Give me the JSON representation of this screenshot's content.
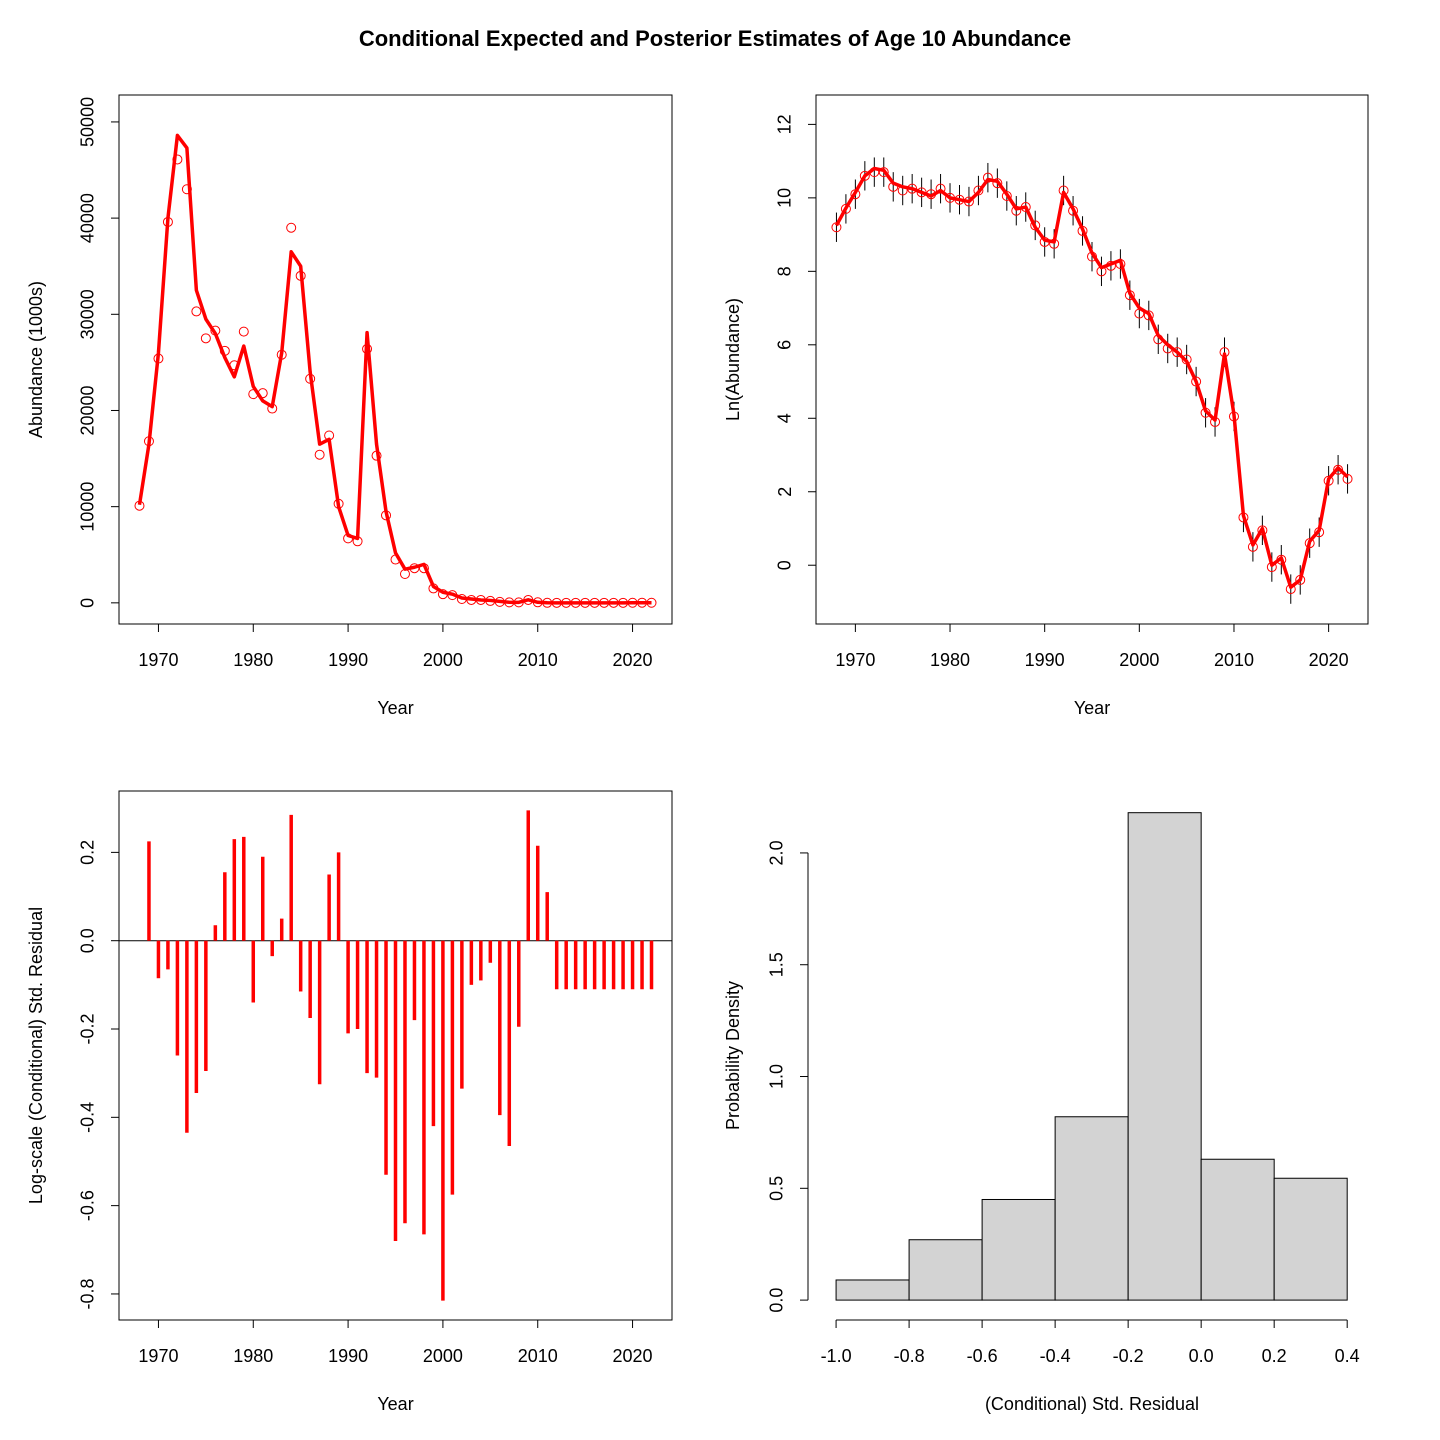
{
  "title": "Conditional Expected and Posterior Estimates of Age 10 Abundance",
  "chart_data": [
    {
      "type": "line",
      "x_label": "Year",
      "y_label": "Abundance (1000s)",
      "x": [
        1968,
        1969,
        1970,
        1971,
        1972,
        1973,
        1974,
        1975,
        1976,
        1977,
        1978,
        1979,
        1980,
        1981,
        1982,
        1983,
        1984,
        1985,
        1986,
        1987,
        1988,
        1989,
        1990,
        1991,
        1992,
        1993,
        1994,
        1995,
        1996,
        1997,
        1998,
        1999,
        2000,
        2001,
        2002,
        2003,
        2004,
        2005,
        2006,
        2007,
        2008,
        2009,
        2010,
        2011,
        2012,
        2013,
        2014,
        2015,
        2016,
        2017,
        2018,
        2019,
        2020,
        2021,
        2022
      ],
      "xlim": [
        1965.84,
        2024.16
      ],
      "xticks": [
        1970,
        1980,
        1990,
        2000,
        2010,
        2020
      ],
      "ylim": [
        -2200,
        52800
      ],
      "yticks": [
        0,
        10000,
        20000,
        30000,
        40000,
        50000
      ],
      "series": [
        {
          "style": "points",
          "color": "#ff0000",
          "values": [
            10100,
            16800,
            25400,
            39600,
            46100,
            43000,
            30300,
            27500,
            28300,
            26200,
            24700,
            28200,
            21700,
            21800,
            20200,
            25800,
            39000,
            34000,
            23300,
            15400,
            17400,
            10300,
            6700,
            6400,
            26400,
            15300,
            9100,
            4500,
            3000,
            3600,
            3600,
            1500,
            900,
            800,
            400,
            300,
            300,
            200,
            100,
            50,
            50,
            300,
            57,
            3.7,
            1.6,
            2.6,
            1.0,
            1.2,
            0.5,
            0.7,
            1.8,
            2.5,
            10,
            13.5,
            10.5
          ]
        },
        {
          "style": "line",
          "color": "#ff0000",
          "values": [
            10200,
            16500,
            26000,
            40000,
            48600,
            47300,
            32500,
            29500,
            28000,
            25500,
            23500,
            26700,
            22500,
            21000,
            20400,
            26000,
            36500,
            35000,
            24000,
            16500,
            17000,
            10000,
            7000,
            6700,
            28100,
            16500,
            9500,
            5200,
            3500,
            3700,
            4000,
            1700,
            1100,
            900,
            500,
            400,
            300,
            250,
            150,
            60,
            50,
            320,
            60,
            4,
            1.8,
            2.8,
            1.1,
            1.3,
            0.6,
            0.7,
            1.9,
            2.7,
            10.5,
            14,
            11
          ]
        }
      ]
    },
    {
      "type": "line",
      "x_label": "Year",
      "y_label": "Ln(Abundance)",
      "x": [
        1968,
        1969,
        1970,
        1971,
        1972,
        1973,
        1974,
        1975,
        1976,
        1977,
        1978,
        1979,
        1980,
        1981,
        1982,
        1983,
        1984,
        1985,
        1986,
        1987,
        1988,
        1989,
        1990,
        1991,
        1992,
        1993,
        1994,
        1995,
        1996,
        1997,
        1998,
        1999,
        2000,
        2001,
        2002,
        2003,
        2004,
        2005,
        2006,
        2007,
        2008,
        2009,
        2010,
        2011,
        2012,
        2013,
        2014,
        2015,
        2016,
        2017,
        2018,
        2019,
        2020,
        2021,
        2022
      ],
      "xlim": [
        1965.84,
        2024.16
      ],
      "xticks": [
        1970,
        1980,
        1990,
        2000,
        2010,
        2020
      ],
      "ylim": [
        -1.6,
        12.8
      ],
      "yticks": [
        0,
        2,
        4,
        6,
        8,
        10,
        12
      ],
      "series": [
        {
          "style": "points",
          "color": "#ff0000",
          "error": 0.4,
          "values": [
            9.2,
            9.7,
            10.1,
            10.6,
            10.7,
            10.7,
            10.3,
            10.2,
            10.25,
            10.15,
            10.1,
            10.25,
            10.0,
            9.95,
            9.9,
            10.2,
            10.55,
            10.4,
            10.05,
            9.65,
            9.75,
            9.25,
            8.8,
            8.75,
            10.2,
            9.65,
            9.1,
            8.4,
            8.0,
            8.15,
            8.2,
            7.35,
            6.85,
            6.8,
            6.15,
            5.9,
            5.8,
            5.6,
            5.0,
            4.15,
            3.9,
            5.8,
            4.05,
            1.3,
            0.5,
            0.95,
            -0.05,
            0.15,
            -0.65,
            -0.4,
            0.6,
            0.9,
            2.3,
            2.6,
            2.35
          ]
        },
        {
          "style": "line",
          "color": "#ff0000",
          "values": [
            9.25,
            9.72,
            10.15,
            10.6,
            10.8,
            10.75,
            10.4,
            10.3,
            10.25,
            10.15,
            10.05,
            10.2,
            10.0,
            9.95,
            9.9,
            10.15,
            10.5,
            10.45,
            10.1,
            9.7,
            9.75,
            9.2,
            8.85,
            8.8,
            10.15,
            9.7,
            9.15,
            8.5,
            8.1,
            8.2,
            8.3,
            7.4,
            7.0,
            6.85,
            6.25,
            6.0,
            5.8,
            5.55,
            5.0,
            4.2,
            3.95,
            5.75,
            4.1,
            1.35,
            0.55,
            1.0,
            0.0,
            0.2,
            -0.6,
            -0.4,
            0.65,
            0.95,
            2.35,
            2.65,
            2.4
          ]
        }
      ]
    },
    {
      "type": "bar",
      "x_label": "Year",
      "y_label": "Log-scale (Conditional) Std. Residual",
      "x": [
        1968,
        1969,
        1970,
        1971,
        1972,
        1973,
        1974,
        1975,
        1976,
        1977,
        1978,
        1979,
        1980,
        1981,
        1982,
        1983,
        1984,
        1985,
        1986,
        1987,
        1988,
        1989,
        1990,
        1991,
        1992,
        1993,
        1994,
        1995,
        1996,
        1997,
        1998,
        1999,
        2000,
        2001,
        2002,
        2003,
        2004,
        2005,
        2006,
        2007,
        2008,
        2009,
        2010,
        2011,
        2012,
        2013,
        2014,
        2015,
        2016,
        2017,
        2018,
        2019,
        2020,
        2021,
        2022
      ],
      "xlim": [
        1965.84,
        2024.16
      ],
      "xticks": [
        1970,
        1980,
        1990,
        2000,
        2010,
        2020
      ],
      "ylim": [
        -0.859,
        0.339
      ],
      "yticks": [
        {
          "value": -0.8,
          "label": "-0.8"
        },
        {
          "value": -0.6,
          "label": "-0.6"
        },
        {
          "value": -0.4,
          "label": "-0.4"
        },
        {
          "value": -0.2,
          "label": "-0.2"
        },
        {
          "value": 0,
          "label": "0.0"
        },
        {
          "value": 0.2,
          "label": "0.2"
        }
      ],
      "reference_line": 0,
      "color": "#ff0000",
      "values": [
        0,
        0.225,
        -0.085,
        -0.065,
        -0.26,
        -0.435,
        -0.345,
        -0.295,
        0.035,
        0.155,
        0.23,
        0.235,
        -0.14,
        0.19,
        -0.035,
        0.05,
        0.285,
        -0.115,
        -0.175,
        -0.325,
        0.15,
        0.2,
        -0.21,
        -0.2,
        -0.3,
        -0.31,
        -0.53,
        -0.68,
        -0.64,
        -0.18,
        -0.665,
        -0.42,
        -0.815,
        -0.575,
        -0.335,
        -0.1,
        -0.09,
        -0.05,
        -0.395,
        -0.465,
        -0.195,
        0.295,
        0.215,
        0.11,
        -0.11,
        -0.11,
        -0.11,
        -0.11,
        -0.11,
        -0.11,
        -0.11,
        -0.11,
        -0.11,
        -0.11,
        -0.11
      ]
    },
    {
      "type": "histogram",
      "x_label": "(Conditional) Std. Residual",
      "y_label": "Probability Density",
      "bins": [
        -1.0,
        -0.8,
        -0.6,
        -0.4,
        -0.2,
        0,
        0.2,
        0.4
      ],
      "values": [
        0.09,
        0.27,
        0.45,
        0.82,
        2.18,
        0.63,
        0.545
      ],
      "color": "#d3d3d3",
      "xlim": [
        -1.055,
        0.457
      ],
      "xticks": [
        {
          "value": -1.0,
          "label": "-1.0"
        },
        {
          "value": -0.8,
          "label": "-0.8"
        },
        {
          "value": -0.6,
          "label": "-0.6"
        },
        {
          "value": -0.4,
          "label": "-0.4"
        },
        {
          "value": -0.2,
          "label": "-0.2"
        },
        {
          "value": 0,
          "label": "0.0"
        },
        0.2,
        0.4
      ],
      "ylim": [
        -0.089,
        2.277
      ],
      "yticks": [
        {
          "value": 0,
          "label": "0.0"
        },
        0.5,
        {
          "value": 1,
          "label": "1.0"
        },
        1.5,
        {
          "value": 2,
          "label": "2.0"
        }
      ]
    }
  ]
}
